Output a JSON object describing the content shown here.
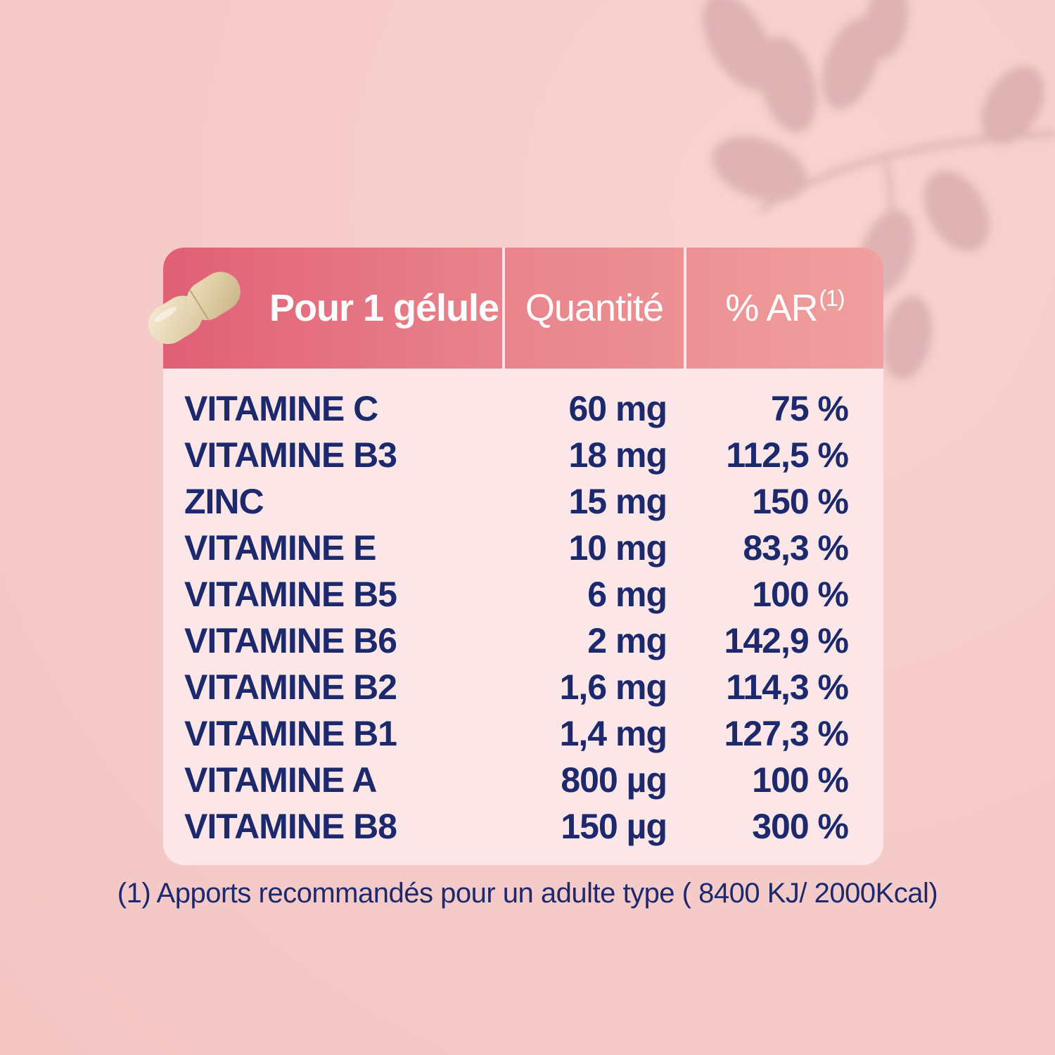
{
  "table": {
    "headers": {
      "name": "Pour 1 gélule",
      "quantity": "Quantité",
      "ar_label": "% AR",
      "ar_superscript": "(1)"
    },
    "rows": [
      {
        "name": "VITAMINE C",
        "quantity": "60 mg",
        "ar": "75 %"
      },
      {
        "name": "VITAMINE B3",
        "quantity": "18 mg",
        "ar": "112,5 %"
      },
      {
        "name": "ZINC",
        "quantity": "15 mg",
        "ar": "150 %"
      },
      {
        "name": "VITAMINE E",
        "quantity": "10 mg",
        "ar": "83,3 %"
      },
      {
        "name": "VITAMINE B5",
        "quantity": "6 mg",
        "ar": "100 %"
      },
      {
        "name": "VITAMINE B6",
        "quantity": "2 mg",
        "ar": "142,9 %"
      },
      {
        "name": "VITAMINE B2",
        "quantity": "1,6 mg",
        "ar": "114,3 %"
      },
      {
        "name": "VITAMINE B1",
        "quantity": "1,4 mg",
        "ar": "127,3 %"
      },
      {
        "name": "VITAMINE A",
        "quantity": "800 µg",
        "ar": "100 %"
      },
      {
        "name": "VITAMINE B8",
        "quantity": "150 µg",
        "ar": "300 %"
      }
    ]
  },
  "footnote": "(1) Apports recommandés pour un adulte type ( 8400 KJ/ 2000Kcal)",
  "colors": {
    "background": "#f5cbc9",
    "header_start": "#e06076",
    "header_end": "#f0a09e",
    "table_body": "#fce6e7",
    "text_navy": "#1c2a6d"
  },
  "icons": {
    "capsule": "capsule-icon",
    "leaves": "leaves-decoration-icon"
  }
}
